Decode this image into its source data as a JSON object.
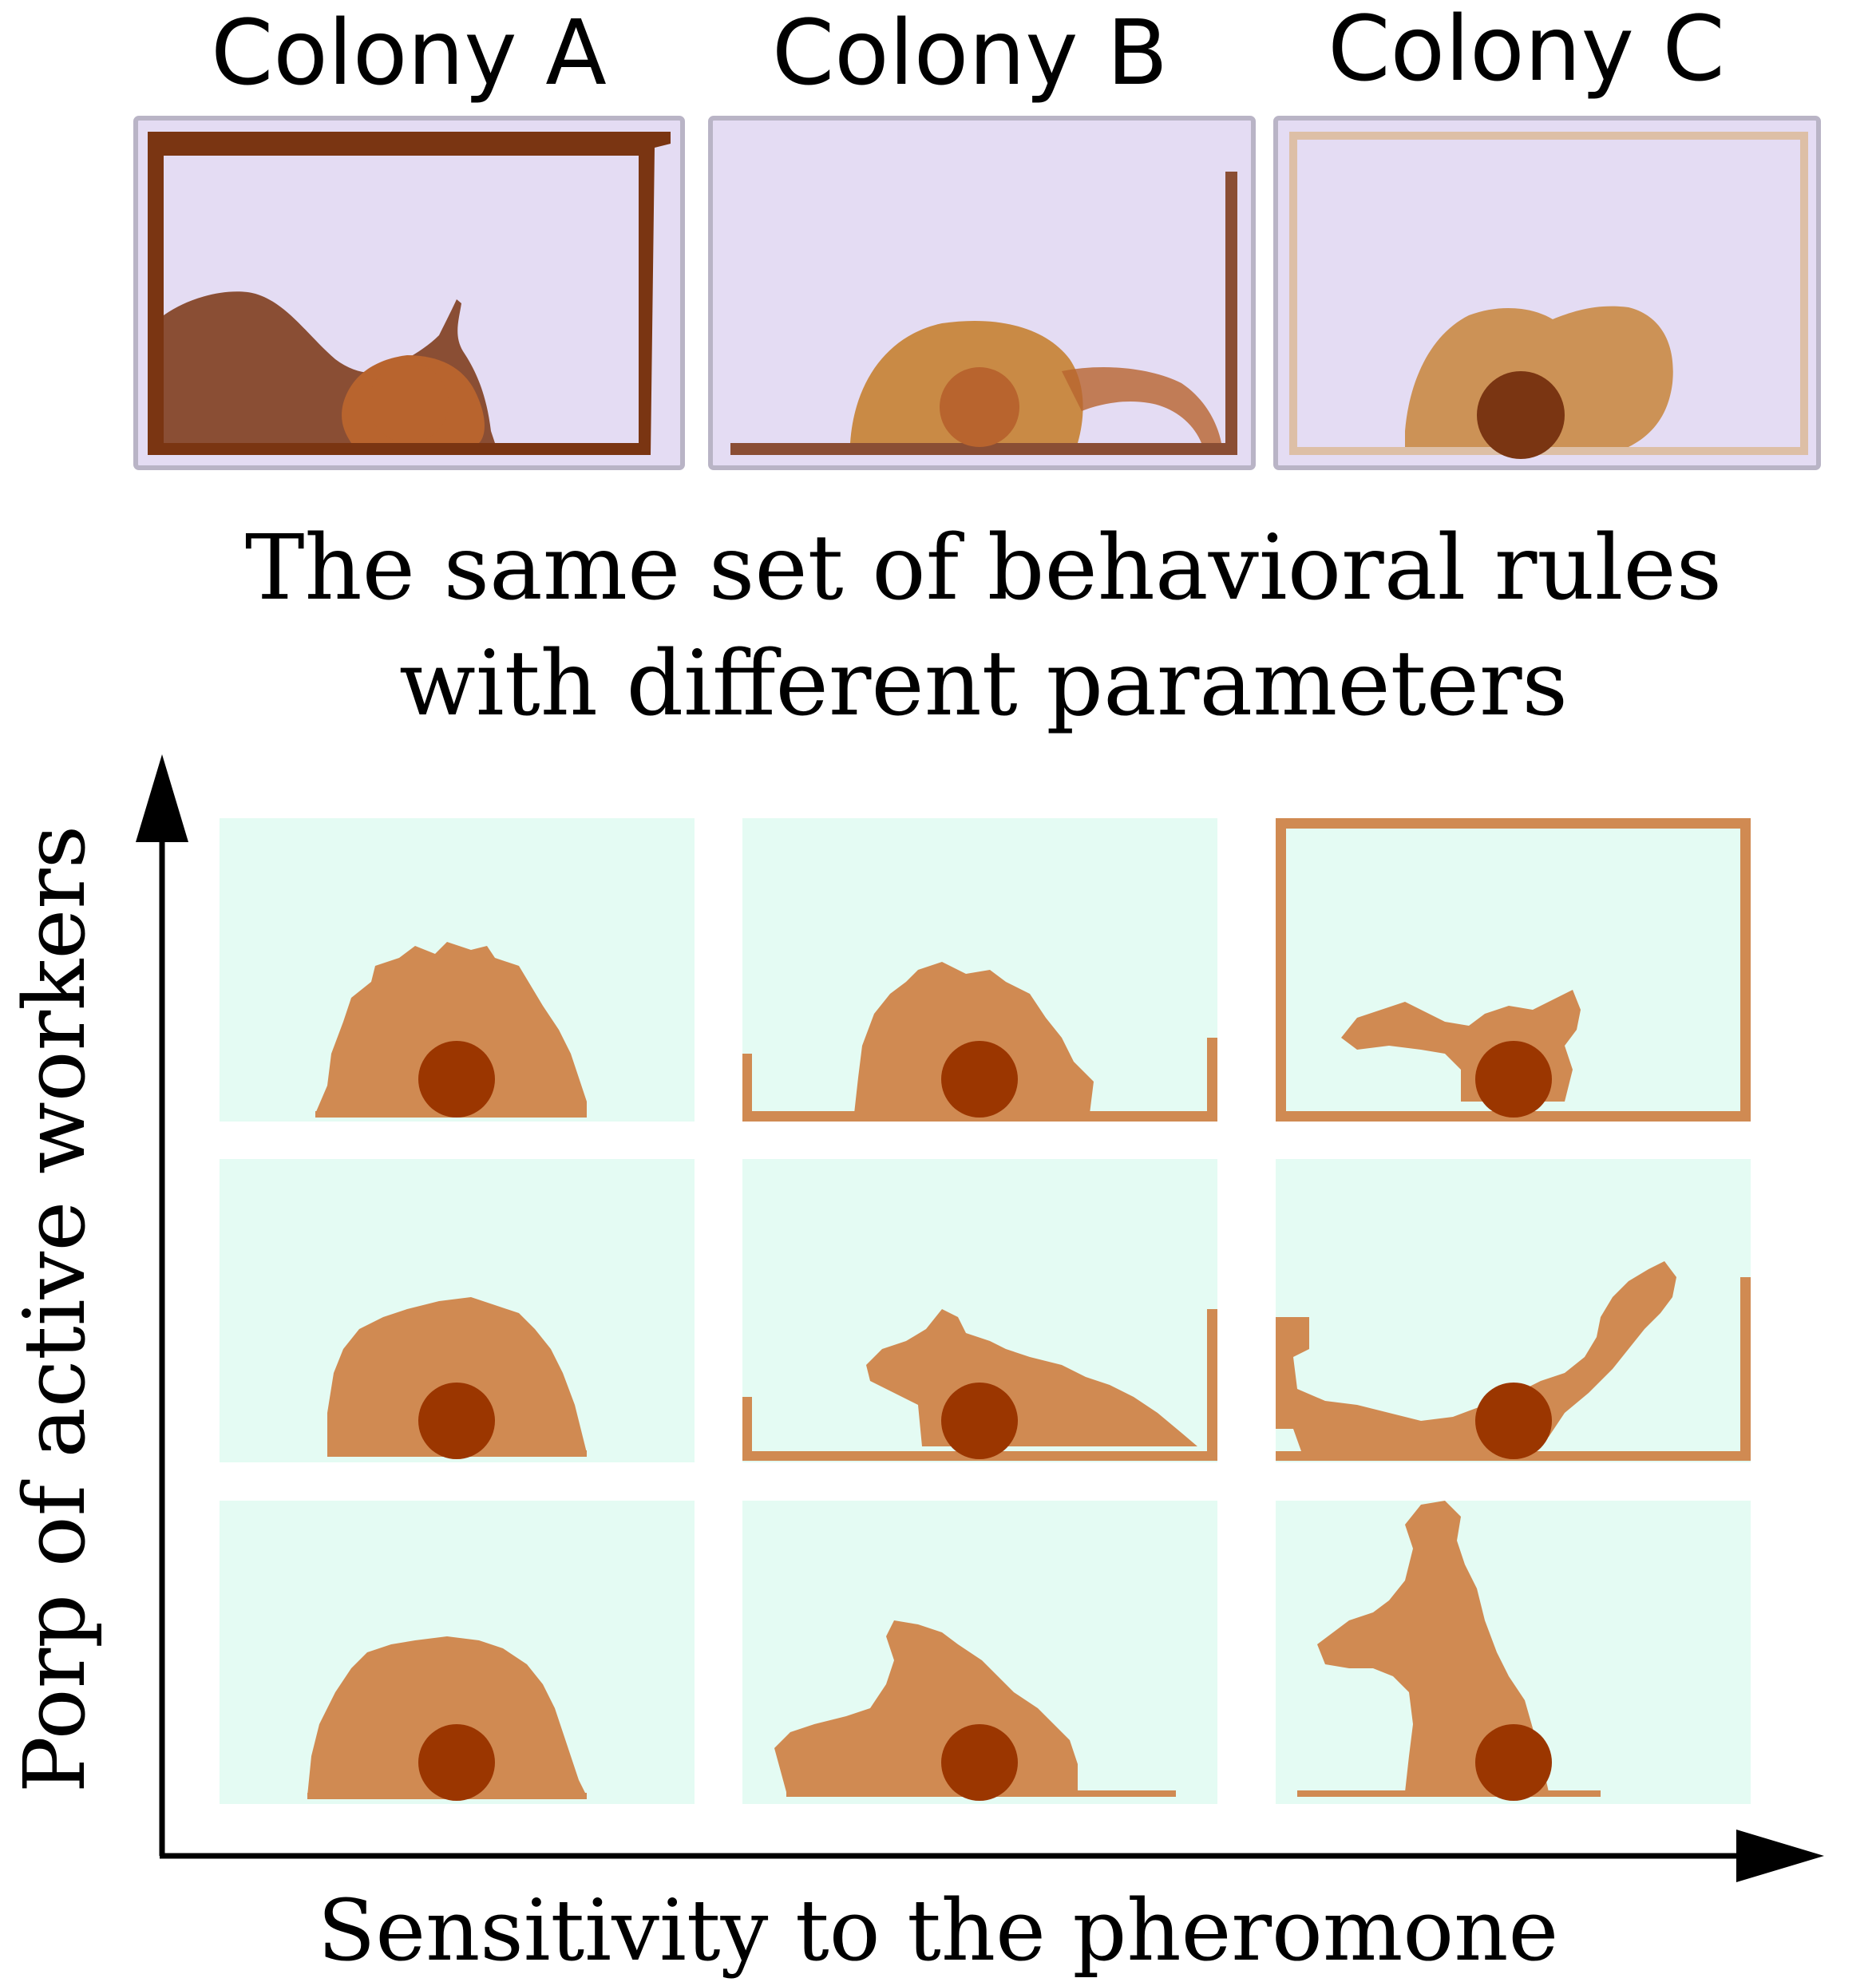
{
  "colonies": [
    {
      "label": "Colony A"
    },
    {
      "label": "Colony B"
    },
    {
      "label": "Colony C"
    }
  ],
  "caption": {
    "line1": "The same set of behavioral rules",
    "line2": "with different parameters"
  },
  "axes": {
    "y_label": "Porp of active workers",
    "x_label": "Sensitivity to the pheromone"
  },
  "colors": {
    "tray_background": "#e4dcf3",
    "soil_dark": "#7a3512",
    "soil_mid": "#b8642e",
    "soil_light": "#c98a45",
    "sim_background": "#e4fbf3",
    "sim_structure": "#d08a52",
    "sim_nest": "#9b3600",
    "axis": "#000000"
  }
}
